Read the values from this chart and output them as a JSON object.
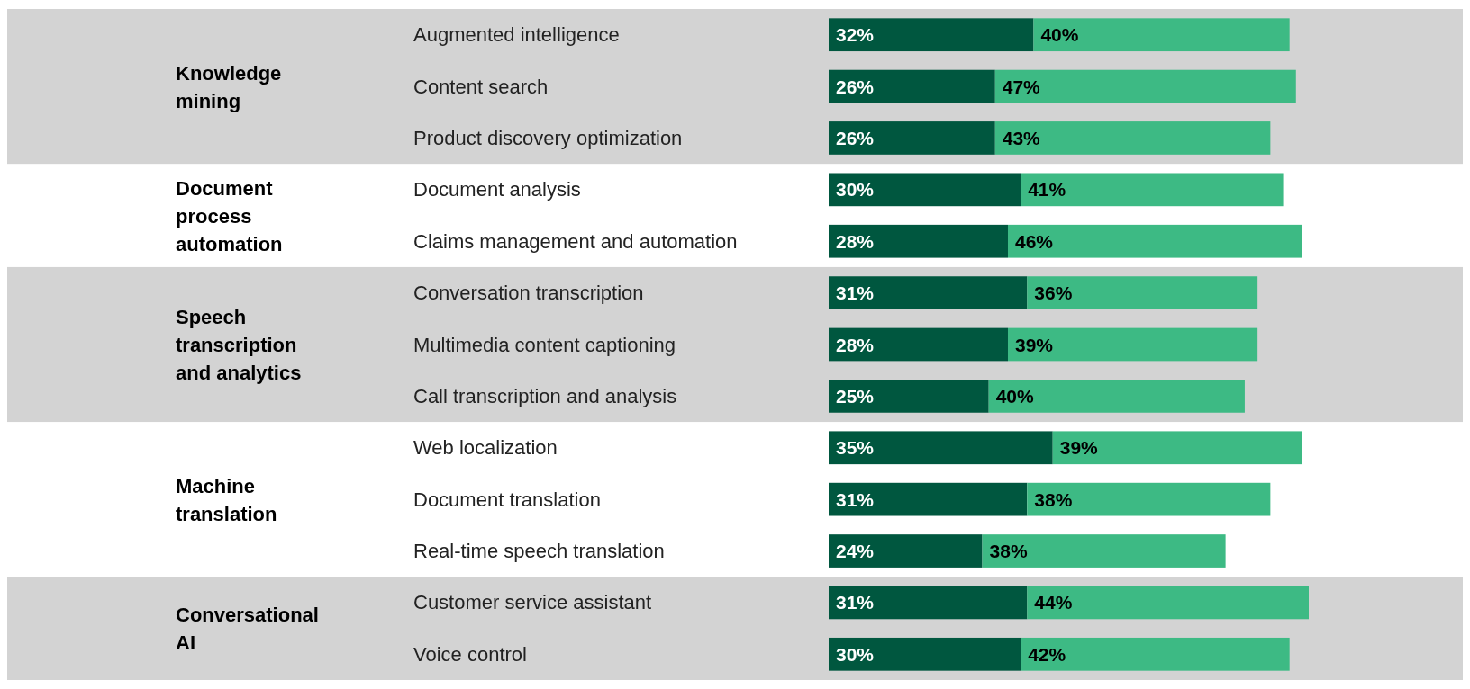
{
  "chart_data": {
    "type": "bar",
    "orientation": "horizontal",
    "stacked": true,
    "categories": [
      "Augmented intelligence",
      "Content search",
      "Product discovery optimization",
      "Document analysis",
      "Claims management and automation",
      "Conversation transcription",
      "Multimedia content captioning",
      "Call transcription and analysis",
      "Web localization",
      "Document translation",
      "Real-time speech translation",
      "Customer service assistant",
      "Voice control"
    ],
    "series": [
      {
        "color": "#00573f",
        "values": [
          32,
          26,
          26,
          30,
          28,
          31,
          28,
          25,
          35,
          31,
          24,
          31,
          30
        ],
        "value_labels": [
          "32%",
          "26%",
          "26%",
          "30%",
          "28%",
          "31%",
          "28%",
          "25%",
          "35%",
          "31%",
          "24%",
          "31%",
          "30%"
        ]
      },
      {
        "color": "#3dba84",
        "values": [
          40,
          47,
          43,
          41,
          46,
          36,
          39,
          40,
          39,
          38,
          38,
          44,
          42
        ],
        "value_labels": [
          "40%",
          "47%",
          "43%",
          "41%",
          "46%",
          "36%",
          "39%",
          "40%",
          "39%",
          "38%",
          "38%",
          "44%",
          "42%"
        ]
      }
    ],
    "bands": [
      {
        "axis": "y",
        "from": "Augmented intelligence",
        "to": "Product discovery optimization",
        "label": "Knowledge mining",
        "color": "#d3d3d3"
      },
      {
        "axis": "y",
        "from": "Conversation transcription",
        "to": "Call transcription and analysis",
        "label": "Speech transcription and analytics",
        "color": "#d3d3d3"
      },
      {
        "axis": "y",
        "from": "Customer service assistant",
        "to": "Voice control",
        "label": "Conversational AI",
        "color": "#d3d3d3"
      }
    ],
    "annotations": [
      "Document process automation",
      "Machine translation"
    ]
  }
}
